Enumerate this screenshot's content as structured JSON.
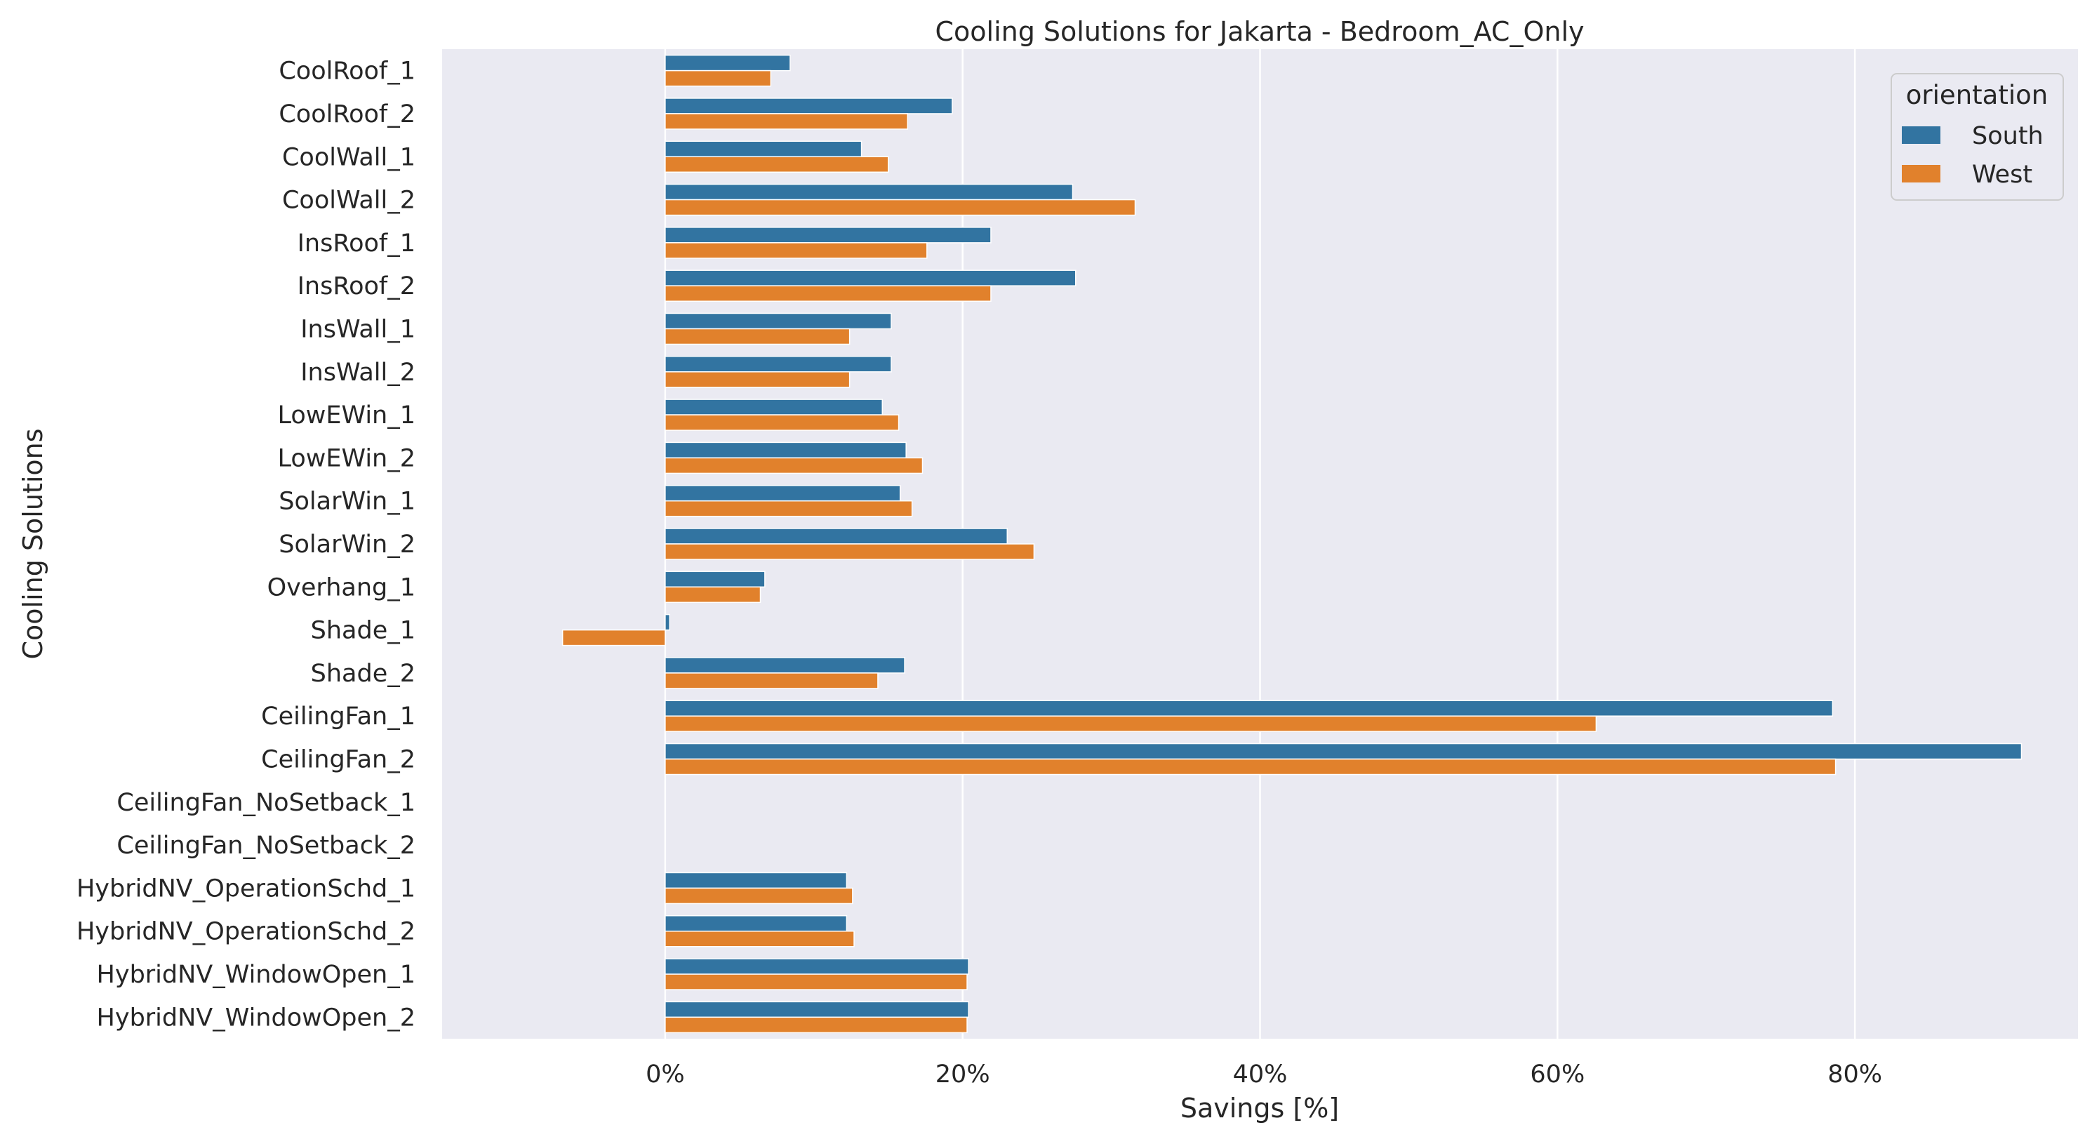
{
  "chart_data": {
    "type": "bar",
    "orientation": "horizontal",
    "title": "Cooling Solutions for Jakarta - Bedroom_AC_Only",
    "xlabel": "Savings [%]",
    "ylabel": "Cooling Solutions",
    "xlim": [
      -15,
      95
    ],
    "xticks": [
      0,
      20,
      40,
      60,
      80
    ],
    "xtick_labels": [
      "0%",
      "20%",
      "40%",
      "60%",
      "80%"
    ],
    "grid": true,
    "legend": {
      "title": "orientation",
      "placement": "top-right"
    },
    "categories": [
      "CoolRoof_1",
      "CoolRoof_2",
      "CoolWall_1",
      "CoolWall_2",
      "InsRoof_1",
      "InsRoof_2",
      "InsWall_1",
      "InsWall_2",
      "LowEWin_1",
      "LowEWin_2",
      "SolarWin_1",
      "SolarWin_2",
      "Overhang_1",
      "Shade_1",
      "Shade_2",
      "CeilingFan_1",
      "CeilingFan_2",
      "CeilingFan_NoSetback_1",
      "CeilingFan_NoSetback_2",
      "HybridNV_OperationSchd_1",
      "HybridNV_OperationSchd_2",
      "HybridNV_WindowOpen_1",
      "HybridNV_WindowOpen_2"
    ],
    "series": [
      {
        "name": "South",
        "color": "#3274a1",
        "values": [
          8.4,
          19.3,
          13.2,
          27.4,
          21.9,
          27.6,
          15.2,
          15.2,
          14.6,
          16.2,
          15.8,
          23.0,
          6.7,
          0.3,
          16.1,
          78.5,
          91.2,
          null,
          null,
          12.2,
          12.2,
          20.4,
          20.4
        ]
      },
      {
        "name": "West",
        "color": "#e1812c",
        "values": [
          7.1,
          16.3,
          15.0,
          31.6,
          17.6,
          21.9,
          12.4,
          12.4,
          15.7,
          17.3,
          16.6,
          24.8,
          6.4,
          -6.9,
          14.3,
          62.6,
          78.7,
          null,
          null,
          12.6,
          12.7,
          20.3,
          20.3
        ]
      }
    ]
  }
}
